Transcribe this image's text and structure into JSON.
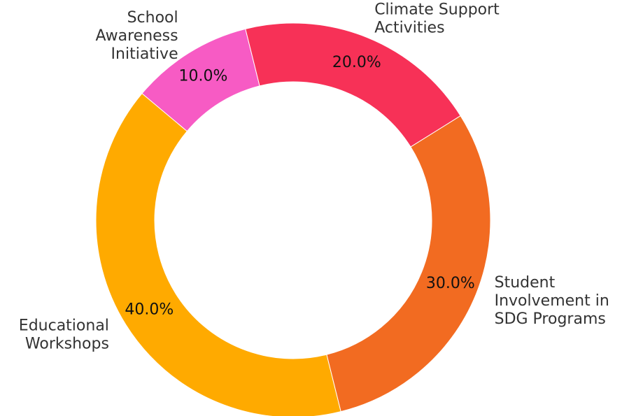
{
  "chart_data": {
    "type": "donut",
    "categories": [
      "School\nAwareness\nInitiative",
      "Educational\nWorkshops",
      "Student\nInvolvement in\nSDG Programs",
      "Climate Support\nActivities"
    ],
    "values": [
      10,
      40,
      30,
      20
    ],
    "value_labels": [
      "10.0%",
      "40.0%",
      "30.0%",
      "20.0%"
    ],
    "colors": [
      "#f75bc4",
      "#ffaa00",
      "#f26b21",
      "#f73157"
    ]
  }
}
